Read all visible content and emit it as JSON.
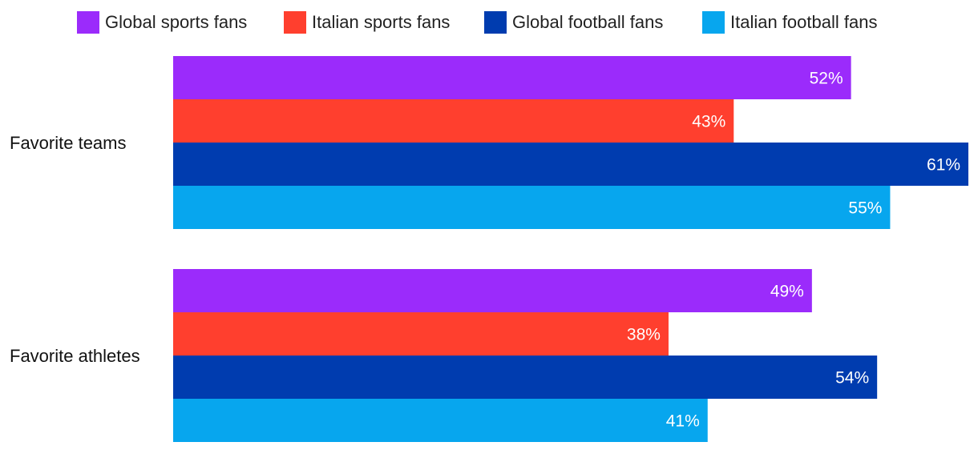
{
  "chart_data": {
    "type": "bar",
    "orientation": "horizontal",
    "categories": [
      "Favorite teams",
      "Favorite athletes"
    ],
    "series": [
      {
        "name": "Global sports fans",
        "values": [
          52,
          49
        ],
        "color": "#9b2bfb"
      },
      {
        "name": "Italian sports fans",
        "values": [
          43,
          38
        ],
        "color": "#ff3f2e"
      },
      {
        "name": "Global football fans",
        "values": [
          61,
          54
        ],
        "color": "#003caf"
      },
      {
        "name": "Italian football fans",
        "values": [
          55,
          41
        ],
        "color": "#07a6ee"
      }
    ],
    "value_suffix": "%",
    "xlim": [
      0,
      61
    ],
    "legend": "top",
    "grid": false
  }
}
